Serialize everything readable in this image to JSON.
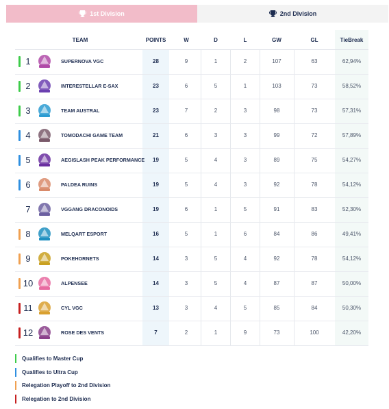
{
  "tabs": [
    {
      "label": "1st Division",
      "active": true
    },
    {
      "label": "2nd Division",
      "active": false
    }
  ],
  "headers": {
    "team": "TEAM",
    "points": "POINTS",
    "w": "W",
    "d": "D",
    "l": "L",
    "gw": "GW",
    "gl": "GL",
    "tiebreak": "TieBreak"
  },
  "colors": {
    "master": "#3dcc4a",
    "ultra": "#2f8fe0",
    "playoff": "#f0a050",
    "relegation": "#c62020",
    "tab_active": "#f2bcc9"
  },
  "rows": [
    {
      "rank": "1",
      "team": "SUPERNOVA VGC",
      "points": "28",
      "w": "9",
      "d": "1",
      "l": "2",
      "gw": "107",
      "gl": "63",
      "tiebreak": "62,94%",
      "status": "master",
      "logo": "supernova-logo"
    },
    {
      "rank": "2",
      "team": "INTERESTELLAR E-SAX",
      "points": "23",
      "w": "6",
      "d": "5",
      "l": "1",
      "gw": "103",
      "gl": "73",
      "tiebreak": "58,52%",
      "status": "master",
      "logo": "interestellar-logo"
    },
    {
      "rank": "3",
      "team": "TEAM AUSTRAL",
      "points": "23",
      "w": "7",
      "d": "2",
      "l": "3",
      "gw": "98",
      "gl": "73",
      "tiebreak": "57,31%",
      "status": "master",
      "logo": "austral-logo"
    },
    {
      "rank": "4",
      "team": "TOMODACHI GAME TEAM",
      "points": "21",
      "w": "6",
      "d": "3",
      "l": "3",
      "gw": "99",
      "gl": "72",
      "tiebreak": "57,89%",
      "status": "ultra",
      "logo": "tomodachi-logo"
    },
    {
      "rank": "5",
      "team": "AEGISLASH PEAK PERFORMANCE",
      "points": "19",
      "w": "5",
      "d": "4",
      "l": "3",
      "gw": "89",
      "gl": "75",
      "tiebreak": "54,27%",
      "status": "ultra",
      "logo": "aegislash-logo"
    },
    {
      "rank": "6",
      "team": "PALDEA RUINS",
      "points": "19",
      "w": "5",
      "d": "4",
      "l": "3",
      "gw": "92",
      "gl": "78",
      "tiebreak": "54,12%",
      "status": "ultra",
      "logo": "paldea-logo"
    },
    {
      "rank": "7",
      "team": "VGGANG DRACONOIDS",
      "points": "19",
      "w": "6",
      "d": "1",
      "l": "5",
      "gw": "91",
      "gl": "83",
      "tiebreak": "52,30%",
      "status": "none",
      "logo": "vggang-logo"
    },
    {
      "rank": "8",
      "team": "MELQART ESPORT",
      "points": "16",
      "w": "5",
      "d": "1",
      "l": "6",
      "gw": "84",
      "gl": "86",
      "tiebreak": "49,41%",
      "status": "playoff",
      "logo": "melqart-logo"
    },
    {
      "rank": "9",
      "team": "POKEHORNETS",
      "points": "14",
      "w": "3",
      "d": "5",
      "l": "4",
      "gw": "92",
      "gl": "78",
      "tiebreak": "54,12%",
      "status": "playoff",
      "logo": "pokehornets-logo"
    },
    {
      "rank": "10",
      "team": "ALPENSEE",
      "points": "14",
      "w": "3",
      "d": "5",
      "l": "4",
      "gw": "87",
      "gl": "87",
      "tiebreak": "50,00%",
      "status": "playoff",
      "logo": "alpensee-logo"
    },
    {
      "rank": "11",
      "team": "CYL VGC",
      "points": "13",
      "w": "3",
      "d": "4",
      "l": "5",
      "gw": "85",
      "gl": "84",
      "tiebreak": "50,30%",
      "status": "relegation",
      "logo": "cyl-logo"
    },
    {
      "rank": "12",
      "team": "ROSE DES VENTS",
      "points": "7",
      "w": "2",
      "d": "1",
      "l": "9",
      "gw": "73",
      "gl": "100",
      "tiebreak": "42,20%",
      "status": "relegation",
      "logo": "rose-logo"
    }
  ],
  "legend": [
    {
      "label": "Qualifies to Master Cup",
      "status": "master"
    },
    {
      "label": "Qualifies to Ultra Cup",
      "status": "ultra"
    },
    {
      "label": "Relegation Playoff to 2nd Division",
      "status": "playoff"
    },
    {
      "label": "Relegation to 2nd Division",
      "status": "relegation"
    }
  ]
}
